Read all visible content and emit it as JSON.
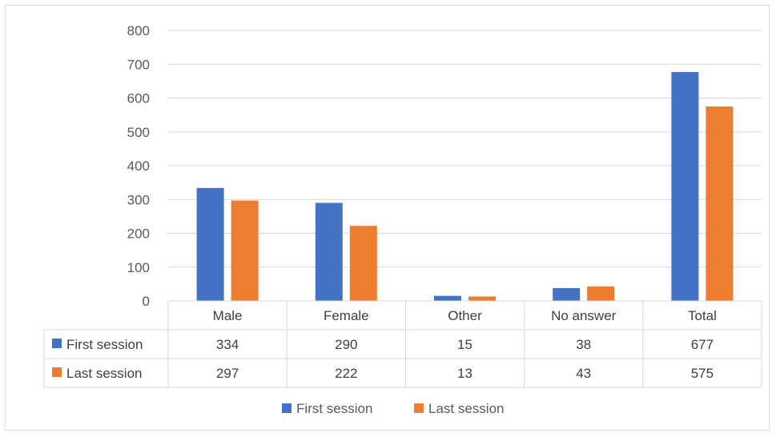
{
  "chart_data": {
    "type": "bar",
    "title": "",
    "xlabel": "",
    "ylabel": "",
    "categories": [
      "Male",
      "Female",
      "Other",
      "No answer",
      "Total"
    ],
    "series": [
      {
        "name": "First session",
        "values": [
          334,
          290,
          15,
          38,
          677
        ],
        "color": "#4472C4"
      },
      {
        "name": "Last session",
        "values": [
          297,
          222,
          13,
          43,
          575
        ],
        "color": "#ED7D31"
      }
    ],
    "ylim": [
      0,
      800
    ],
    "yticks": [
      "800",
      "700",
      "600",
      "500",
      "400",
      "300",
      "200",
      "100",
      "0"
    ],
    "grid": true,
    "data_table": true,
    "legend_position": "bottom"
  }
}
